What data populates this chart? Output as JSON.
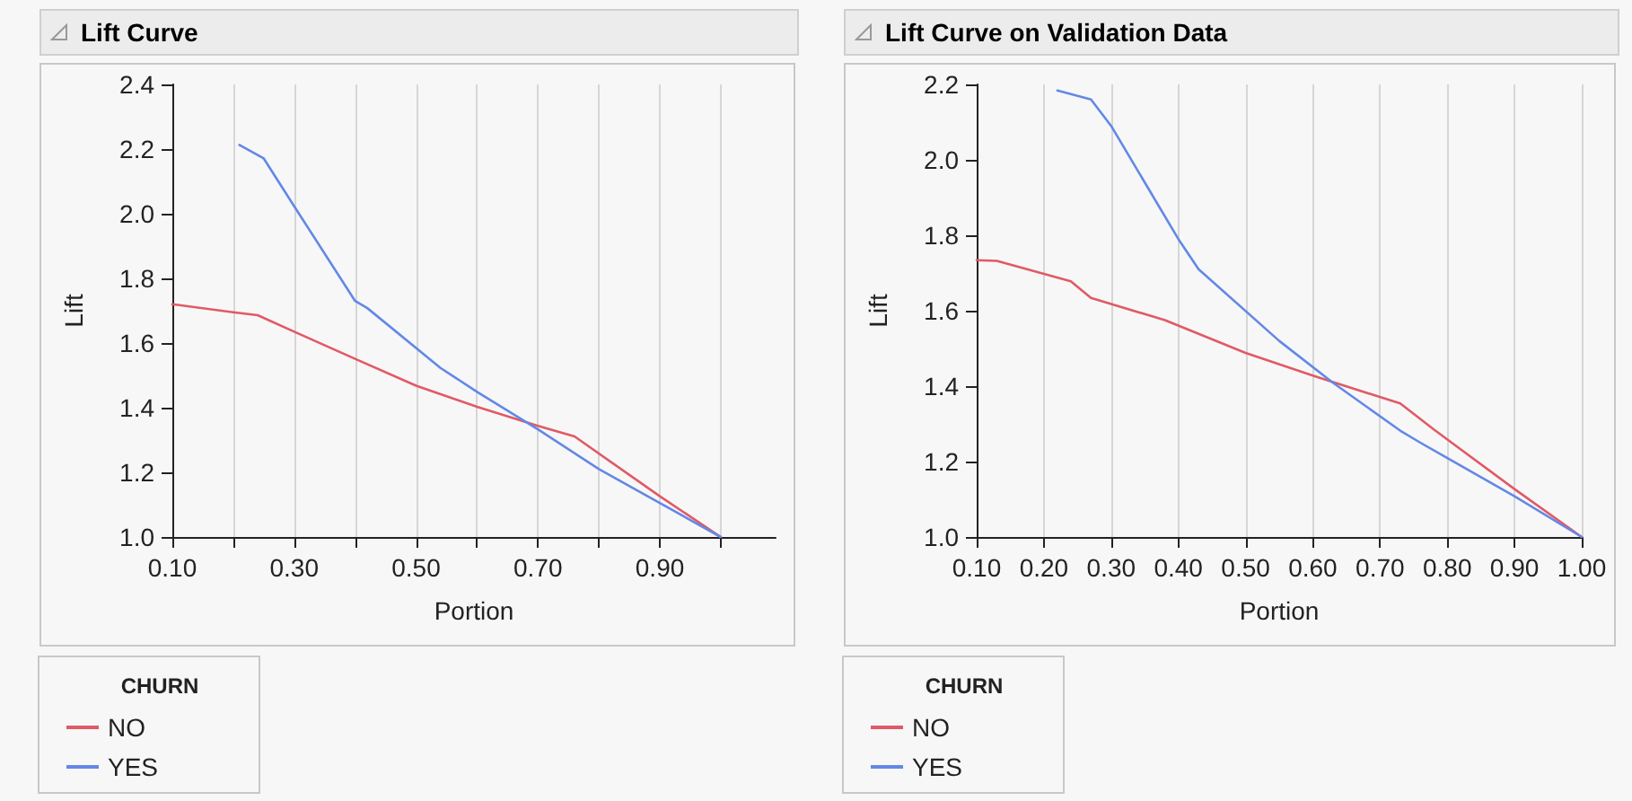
{
  "chart_data": [
    {
      "type": "line",
      "title": "Lift Curve",
      "xlabel": "Portion",
      "ylabel": "Lift",
      "legend_title": "CHURN",
      "legend": "bottom left",
      "grid": "x",
      "xlim": [
        0.1,
        1.09
      ],
      "xticks": [
        {
          "value": 0.1,
          "label": "0.10"
        },
        {
          "value": 0.2,
          "label": null
        },
        {
          "value": 0.3,
          "label": "0.30"
        },
        {
          "value": 0.4,
          "label": null
        },
        {
          "value": 0.5,
          "label": "0.50"
        },
        {
          "value": 0.6,
          "label": null
        },
        {
          "value": 0.7,
          "label": "0.70"
        },
        {
          "value": 0.8,
          "label": null
        },
        {
          "value": 0.9,
          "label": "0.90"
        },
        {
          "value": 1.0,
          "label": null
        }
      ],
      "ylim": [
        1.0,
        2.4
      ],
      "yticks": [
        {
          "value": 1.0,
          "label": "1.0"
        },
        {
          "value": 1.2,
          "label": "1.2"
        },
        {
          "value": 1.4,
          "label": "1.4"
        },
        {
          "value": 1.6,
          "label": "1.6"
        },
        {
          "value": 1.8,
          "label": "1.8"
        },
        {
          "value": 2.0,
          "label": "2.0"
        },
        {
          "value": 2.2,
          "label": "2.2"
        },
        {
          "value": 2.4,
          "label": "2.4"
        }
      ],
      "series": [
        {
          "name": "NO",
          "color": "#e05a66",
          "x": [
            0.1,
            0.2,
            0.24,
            0.3,
            0.4,
            0.5,
            0.6,
            0.7,
            0.76,
            0.9,
            1.0
          ],
          "values": [
            1.72,
            1.695,
            1.686,
            1.635,
            1.551,
            1.468,
            1.403,
            1.344,
            1.311,
            1.126,
            1.0
          ]
        },
        {
          "name": "YES",
          "color": "#6388e6",
          "x": [
            0.21,
            0.25,
            0.3,
            0.4,
            0.42,
            0.54,
            0.6,
            0.7,
            0.8,
            0.88,
            1.0
          ],
          "values": [
            2.213,
            2.171,
            2.023,
            1.73,
            1.708,
            1.523,
            1.449,
            1.333,
            1.21,
            1.126,
            1.0
          ]
        }
      ]
    },
    {
      "type": "line",
      "title": "Lift Curve on Validation Data",
      "xlabel": "Portion",
      "ylabel": "Lift",
      "legend_title": "CHURN",
      "legend": "bottom left",
      "grid": "x",
      "xlim": [
        0.1,
        1.0
      ],
      "xticks": [
        {
          "value": 0.1,
          "label": "0.10"
        },
        {
          "value": 0.2,
          "label": "0.20"
        },
        {
          "value": 0.3,
          "label": "0.30"
        },
        {
          "value": 0.4,
          "label": "0.40"
        },
        {
          "value": 0.5,
          "label": "0.50"
        },
        {
          "value": 0.6,
          "label": "0.60"
        },
        {
          "value": 0.7,
          "label": "0.70"
        },
        {
          "value": 0.8,
          "label": "0.80"
        },
        {
          "value": 0.9,
          "label": "0.90"
        },
        {
          "value": 1.0,
          "label": "1.00"
        }
      ],
      "ylim": [
        1.0,
        2.2
      ],
      "yticks": [
        {
          "value": 1.0,
          "label": "1.0"
        },
        {
          "value": 1.2,
          "label": "1.2"
        },
        {
          "value": 1.4,
          "label": "1.4"
        },
        {
          "value": 1.6,
          "label": "1.6"
        },
        {
          "value": 1.8,
          "label": "1.8"
        },
        {
          "value": 2.0,
          "label": "2.0"
        },
        {
          "value": 2.2,
          "label": "2.2"
        }
      ],
      "series": [
        {
          "name": "NO",
          "color": "#e05a66",
          "x": [
            0.1,
            0.13,
            0.24,
            0.27,
            0.38,
            0.5,
            0.6,
            0.73,
            0.78,
            0.9,
            1.0
          ],
          "values": [
            1.734,
            1.732,
            1.678,
            1.634,
            1.575,
            1.488,
            1.428,
            1.354,
            1.285,
            1.127,
            1.0
          ]
        },
        {
          "name": "YES",
          "color": "#6388e6",
          "x": [
            0.22,
            0.27,
            0.3,
            0.4,
            0.43,
            0.55,
            0.63,
            0.73,
            0.76,
            0.9,
            1.0
          ],
          "values": [
            2.184,
            2.16,
            2.09,
            1.79,
            1.71,
            1.52,
            1.409,
            1.282,
            1.25,
            1.108,
            1.0
          ]
        }
      ]
    }
  ]
}
